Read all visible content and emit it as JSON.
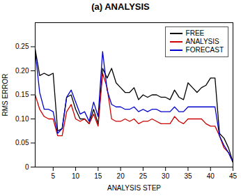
{
  "chart_data": {
    "type": "line",
    "title": "(a) ANALYSIS",
    "xlabel": "ANALYSIS STEP",
    "ylabel": "RMS ERROR",
    "x": [
      1,
      2,
      3,
      4,
      5,
      6,
      7,
      8,
      9,
      10,
      11,
      12,
      13,
      14,
      15,
      16,
      17,
      18,
      19,
      20,
      21,
      22,
      23,
      24,
      25,
      26,
      27,
      28,
      29,
      30,
      31,
      32,
      33,
      34,
      35,
      36,
      37,
      38,
      39,
      40,
      41,
      42,
      43,
      44,
      45
    ],
    "series": [
      {
        "name": "FREE",
        "color": "#000000",
        "values": [
          0.245,
          0.19,
          0.195,
          0.19,
          0.195,
          0.075,
          0.08,
          0.145,
          0.15,
          0.12,
          0.1,
          0.1,
          0.09,
          0.12,
          0.09,
          0.205,
          0.185,
          0.205,
          0.175,
          0.165,
          0.155,
          0.155,
          0.165,
          0.14,
          0.15,
          0.145,
          0.15,
          0.15,
          0.145,
          0.145,
          0.14,
          0.16,
          0.145,
          0.14,
          0.175,
          0.165,
          0.155,
          0.165,
          0.17,
          0.185,
          0.185,
          0.07,
          0.06,
          0.04,
          0.01
        ]
      },
      {
        "name": "ANALYSIS",
        "color": "#cc0000",
        "values": [
          0.15,
          0.12,
          0.105,
          0.1,
          0.1,
          0.065,
          0.065,
          0.115,
          0.13,
          0.1,
          0.095,
          0.1,
          0.09,
          0.11,
          0.085,
          0.195,
          0.165,
          0.1,
          0.095,
          0.095,
          0.1,
          0.095,
          0.1,
          0.09,
          0.095,
          0.095,
          0.1,
          0.095,
          0.09,
          0.09,
          0.09,
          0.105,
          0.095,
          0.09,
          0.1,
          0.1,
          0.1,
          0.1,
          0.09,
          0.085,
          0.085,
          0.065,
          0.04,
          0.03,
          0.01
        ]
      },
      {
        "name": "FORECAST",
        "color": "#0000cc",
        "values": [
          0.24,
          0.155,
          0.12,
          0.12,
          0.115,
          0.07,
          0.08,
          0.145,
          0.16,
          0.135,
          0.11,
          0.115,
          0.095,
          0.135,
          0.105,
          0.24,
          0.16,
          0.13,
          0.125,
          0.125,
          0.12,
          0.12,
          0.125,
          0.115,
          0.12,
          0.115,
          0.12,
          0.12,
          0.115,
          0.115,
          0.115,
          0.125,
          0.115,
          0.115,
          0.125,
          0.125,
          0.125,
          0.125,
          0.125,
          0.125,
          0.125,
          0.065,
          0.045,
          0.03,
          0.01
        ]
      }
    ],
    "xlim": [
      1,
      45
    ],
    "xticks": [
      5,
      10,
      15,
      20,
      25,
      30,
      35,
      40,
      45
    ],
    "ylim": [
      0,
      0.3
    ],
    "yticks": [
      0,
      0.05,
      {
        "value": 0.1,
        "label": "0.10"
      },
      {
        "value": 0.15,
        "label": "0.15"
      },
      {
        "value": 0.2,
        "label": "0.20"
      },
      {
        "value": 0.25,
        "label": "0.25"
      }
    ],
    "grid": false,
    "legend": "upper right"
  }
}
